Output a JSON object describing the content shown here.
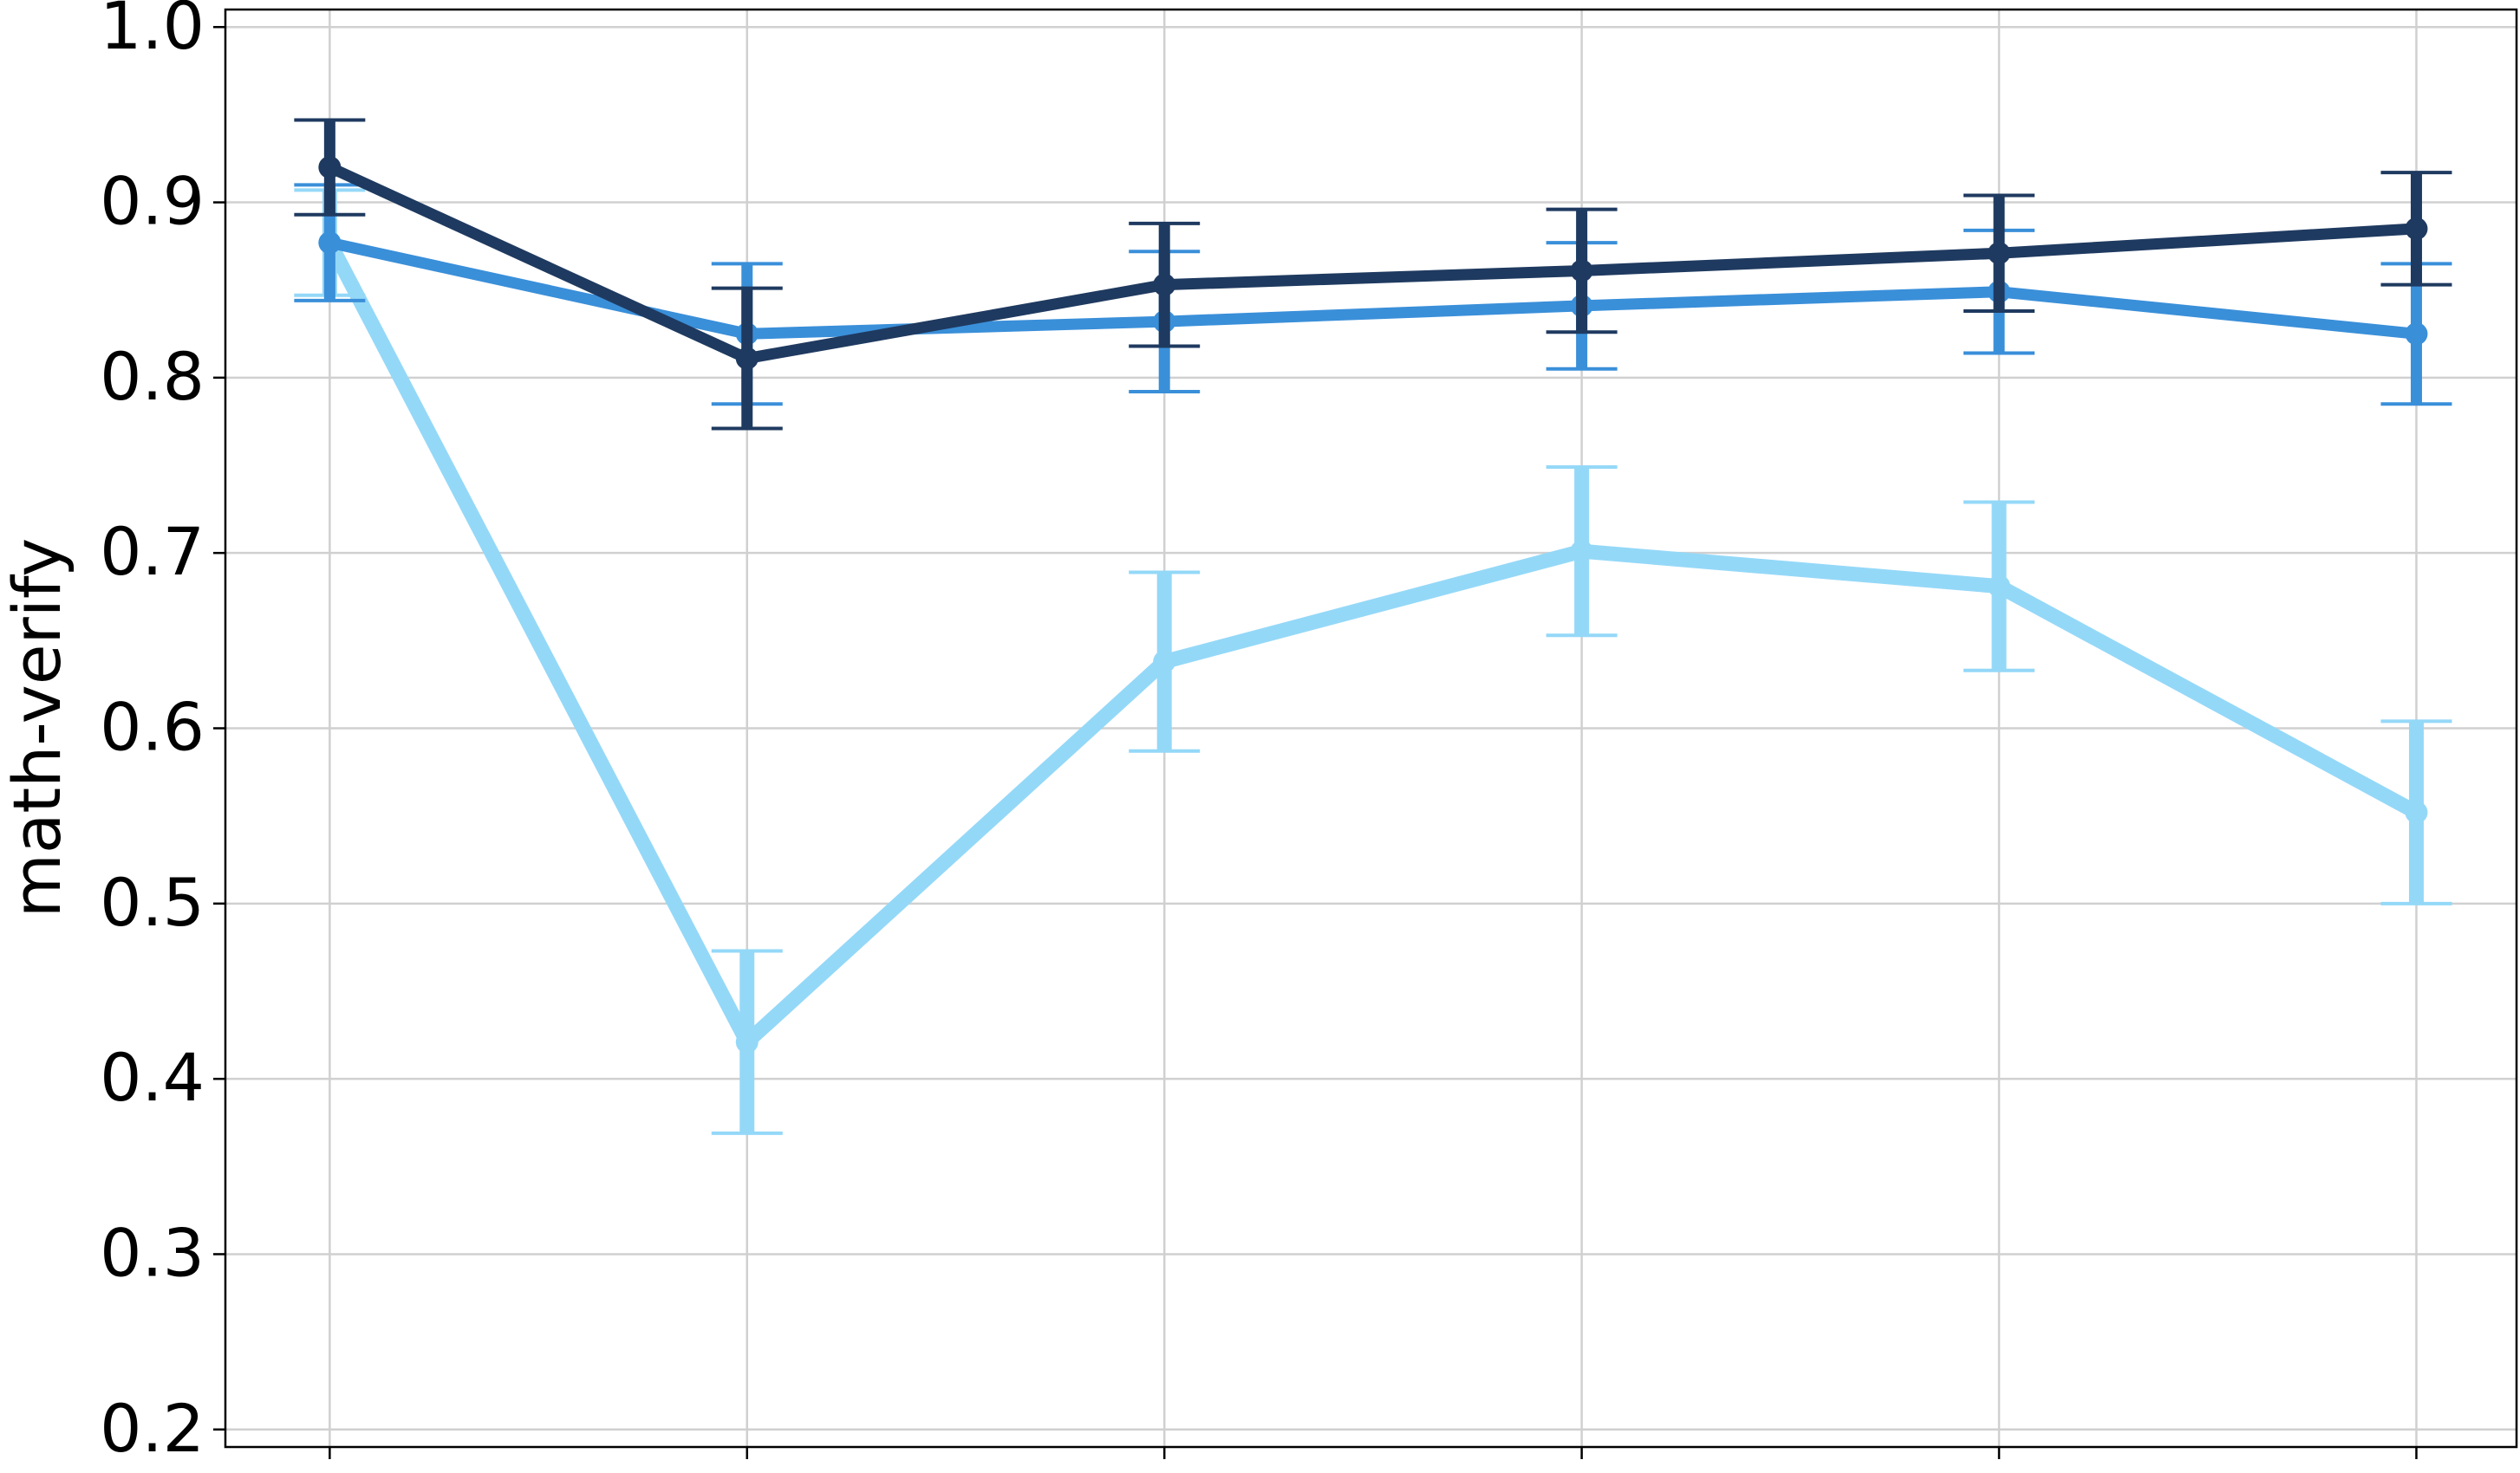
{
  "chart_data": {
    "type": "line",
    "y_label": "math-verify",
    "categories": [
      null,
      null,
      null,
      null,
      null,
      null
    ],
    "series": [
      {
        "color": "#94d8f8",
        "values": [
          0.877,
          0.421,
          0.638,
          0.701,
          0.681,
          0.552
        ],
        "errors": [
          0.03,
          0.052,
          0.051,
          0.048,
          0.048,
          0.052
        ]
      },
      {
        "color": "#3a8fd9",
        "values": [
          0.877,
          0.825,
          0.832,
          0.841,
          0.849,
          0.825
        ],
        "errors": [
          0.033,
          0.04,
          0.04,
          0.036,
          0.035,
          0.04
        ]
      },
      {
        "color": "#1f3a60",
        "values": [
          0.92,
          0.811,
          0.853,
          0.861,
          0.871,
          0.885
        ],
        "errors": [
          0.027,
          0.04,
          0.035,
          0.035,
          0.033,
          0.032
        ]
      }
    ],
    "ylim": [
      0.19,
      1.01
    ],
    "yticks": [
      {
        "value": 0.2,
        "label": "0.2"
      },
      {
        "value": 0.3,
        "label": "0.3"
      },
      {
        "value": 0.4,
        "label": "0.4"
      },
      {
        "value": 0.5,
        "label": "0.5"
      },
      {
        "value": 0.6,
        "label": "0.6"
      },
      {
        "value": 0.7,
        "label": "0.7"
      },
      {
        "value": 0.8,
        "label": "0.8"
      },
      {
        "value": 0.9,
        "label": "0.9"
      },
      {
        "value": 1.0,
        "label": "1.0"
      }
    ],
    "grid": true
  }
}
